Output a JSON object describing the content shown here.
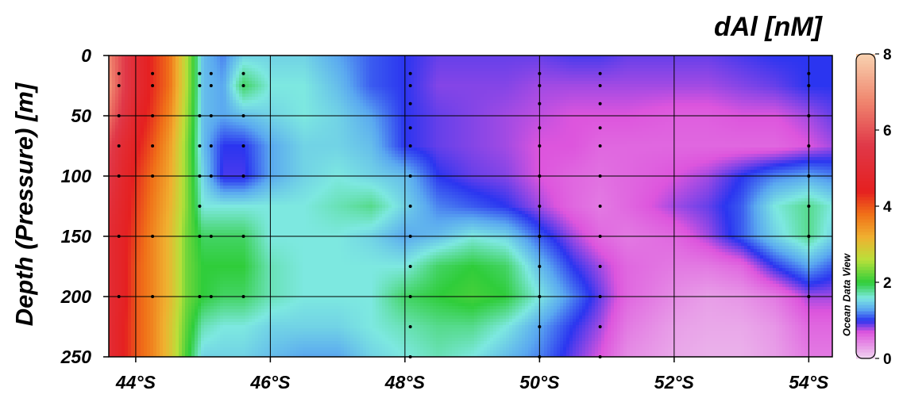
{
  "chart_data": {
    "type": "heatmap",
    "title": "dAl [nM]",
    "ylabel": "Depth (Pressure) [m]",
    "xlabel": "",
    "watermark": "Ocean Data View",
    "x_ticks": [
      "44°S",
      "46°S",
      "48°S",
      "50°S",
      "52°S",
      "54°S"
    ],
    "x_tick_values": [
      44,
      46,
      48,
      50,
      52,
      54
    ],
    "y_ticks": [
      "0",
      "50",
      "100",
      "150",
      "200",
      "250"
    ],
    "y_tick_values": [
      0,
      50,
      100,
      150,
      200,
      250
    ],
    "xlim": [
      43.6,
      54.35
    ],
    "ylim": [
      250,
      0
    ],
    "colorbar": {
      "range": [
        0,
        8
      ],
      "ticks": [
        "0",
        "2",
        "4",
        "6",
        "8"
      ],
      "tick_values": [
        0,
        2,
        4,
        6,
        8
      ],
      "stops": [
        {
          "v": 0,
          "c": "#f0d6f0"
        },
        {
          "v": 0.7,
          "c": "#dd55dd"
        },
        {
          "v": 1.0,
          "c": "#2b35f0"
        },
        {
          "v": 1.3,
          "c": "#5aa8f0"
        },
        {
          "v": 1.6,
          "c": "#7de8e0"
        },
        {
          "v": 2.0,
          "c": "#2fcd3a"
        },
        {
          "v": 2.6,
          "c": "#b9e03a"
        },
        {
          "v": 3.2,
          "c": "#f0b030"
        },
        {
          "v": 3.8,
          "c": "#f07018"
        },
        {
          "v": 4.4,
          "c": "#e52020"
        },
        {
          "v": 5.6,
          "c": "#e03848"
        },
        {
          "v": 6.8,
          "c": "#f08870"
        },
        {
          "v": 8.0,
          "c": "#f8d2b0"
        }
      ]
    },
    "grid": true,
    "field": {
      "columns_lat": [
        43.6,
        43.8,
        44.0,
        44.25,
        44.5,
        44.75,
        45.0,
        45.3,
        45.6,
        46.0,
        46.5,
        47.0,
        47.5,
        48.0,
        48.5,
        49.0,
        49.5,
        50.0,
        50.5,
        50.9,
        51.3,
        52.0,
        52.5,
        53.0,
        53.5,
        54.0,
        54.35
      ],
      "depths": [
        0,
        25,
        50,
        75,
        100,
        125,
        150,
        175,
        200,
        225,
        250
      ],
      "values": [
        [
          6.8,
          5.8,
          5.0,
          4.3,
          3.8,
          2.6,
          1.4,
          1.2,
          1.5,
          1.5,
          1.5,
          1.3,
          1.1,
          1.0,
          0.9,
          0.9,
          0.9,
          0.9,
          0.95,
          0.95,
          0.9,
          0.9,
          0.9,
          0.95,
          1.0,
          1.0,
          1.0
        ],
        [
          7.0,
          5.8,
          5.0,
          4.3,
          3.8,
          2.6,
          1.4,
          1.3,
          1.9,
          1.6,
          1.6,
          1.4,
          1.1,
          1.0,
          0.85,
          0.85,
          0.85,
          0.8,
          0.8,
          0.8,
          0.8,
          0.8,
          0.8,
          0.85,
          0.9,
          1.0,
          1.0
        ],
        [
          6.5,
          5.5,
          4.7,
          4.2,
          3.6,
          2.5,
          1.4,
          1.3,
          1.4,
          1.5,
          1.6,
          1.5,
          1.3,
          1.0,
          0.9,
          0.85,
          0.8,
          0.75,
          0.7,
          0.7,
          0.7,
          0.65,
          0.65,
          0.7,
          0.7,
          0.8,
          0.9
        ],
        [
          5.8,
          5.0,
          4.5,
          4.0,
          3.4,
          2.4,
          1.4,
          1.0,
          1.0,
          1.3,
          1.5,
          1.5,
          1.4,
          1.0,
          0.9,
          0.85,
          0.8,
          0.7,
          0.7,
          0.6,
          0.6,
          0.6,
          0.6,
          0.6,
          0.6,
          0.7,
          0.8
        ],
        [
          5.5,
          4.8,
          4.3,
          3.8,
          3.3,
          2.4,
          1.5,
          0.95,
          0.95,
          1.3,
          1.5,
          1.6,
          1.5,
          1.4,
          1.0,
          0.9,
          0.85,
          0.7,
          0.6,
          0.55,
          0.6,
          0.7,
          0.8,
          1.0,
          1.2,
          1.3,
          1.2
        ],
        [
          5.2,
          4.7,
          4.2,
          3.7,
          3.2,
          2.4,
          1.6,
          1.6,
          1.6,
          1.6,
          1.6,
          1.7,
          1.8,
          1.5,
          1.2,
          1.1,
          1.0,
          0.8,
          0.6,
          0.5,
          0.6,
          0.8,
          0.9,
          1.1,
          1.6,
          1.8,
          1.6
        ],
        [
          5.0,
          4.6,
          4.1,
          3.6,
          3.1,
          2.3,
          1.9,
          1.9,
          1.9,
          1.6,
          1.6,
          1.6,
          1.5,
          1.3,
          1.4,
          1.6,
          1.5,
          1.1,
          0.8,
          0.6,
          0.5,
          0.6,
          0.8,
          1.1,
          1.5,
          1.8,
          1.5
        ],
        [
          5.0,
          4.6,
          4.0,
          3.6,
          3.1,
          2.3,
          2.0,
          2.0,
          2.0,
          1.7,
          1.6,
          1.6,
          1.6,
          1.6,
          1.9,
          2.0,
          1.9,
          1.4,
          1.0,
          0.8,
          0.6,
          0.5,
          0.5,
          0.6,
          1.0,
          1.3,
          1.1
        ],
        [
          5.0,
          4.6,
          4.0,
          3.6,
          3.1,
          2.3,
          2.0,
          1.9,
          1.9,
          1.7,
          1.6,
          1.6,
          1.6,
          1.9,
          2.0,
          2.1,
          2.0,
          1.6,
          1.2,
          0.9,
          0.6,
          0.4,
          0.3,
          0.35,
          0.5,
          0.8,
          0.8
        ],
        [
          5.0,
          4.5,
          4.0,
          3.6,
          3.0,
          2.2,
          1.7,
          1.6,
          1.6,
          1.5,
          1.5,
          1.5,
          1.6,
          1.7,
          1.8,
          1.8,
          1.6,
          1.3,
          1.0,
          0.8,
          0.5,
          0.3,
          0.25,
          0.25,
          0.35,
          0.6,
          0.6
        ],
        [
          5.0,
          4.5,
          4.0,
          3.6,
          3.0,
          2.1,
          1.5,
          1.5,
          1.5,
          1.4,
          1.3,
          1.3,
          1.5,
          1.6,
          1.7,
          1.6,
          1.4,
          1.2,
          0.9,
          0.7,
          0.4,
          0.25,
          0.2,
          0.2,
          0.3,
          0.5,
          0.5
        ]
      ]
    },
    "stations": [
      {
        "lat": 43.75,
        "depths": [
          15,
          25,
          50,
          75,
          100,
          150,
          200
        ]
      },
      {
        "lat": 44.25,
        "depths": [
          15,
          25,
          50,
          75,
          100,
          150,
          200
        ]
      },
      {
        "lat": 44.95,
        "depths": [
          15,
          25,
          50,
          75,
          100,
          125,
          150,
          200
        ]
      },
      {
        "lat": 45.12,
        "depths": [
          15,
          25,
          50,
          75,
          100,
          150,
          200
        ]
      },
      {
        "lat": 45.6,
        "depths": [
          15,
          25,
          50,
          75,
          100,
          150,
          200
        ]
      },
      {
        "lat": 48.08,
        "depths": [
          15,
          25,
          40,
          60,
          75,
          100,
          125,
          150,
          175,
          200,
          225,
          250
        ]
      },
      {
        "lat": 50.0,
        "depths": [
          15,
          25,
          40,
          60,
          75,
          100,
          125,
          150,
          175,
          200,
          225,
          250
        ]
      },
      {
        "lat": 50.9,
        "depths": [
          15,
          25,
          40,
          60,
          75,
          100,
          125,
          150,
          175,
          200,
          225,
          250
        ]
      },
      {
        "lat": 54.0,
        "depths": [
          15,
          25,
          50,
          75,
          100,
          125,
          150,
          200
        ]
      }
    ]
  }
}
